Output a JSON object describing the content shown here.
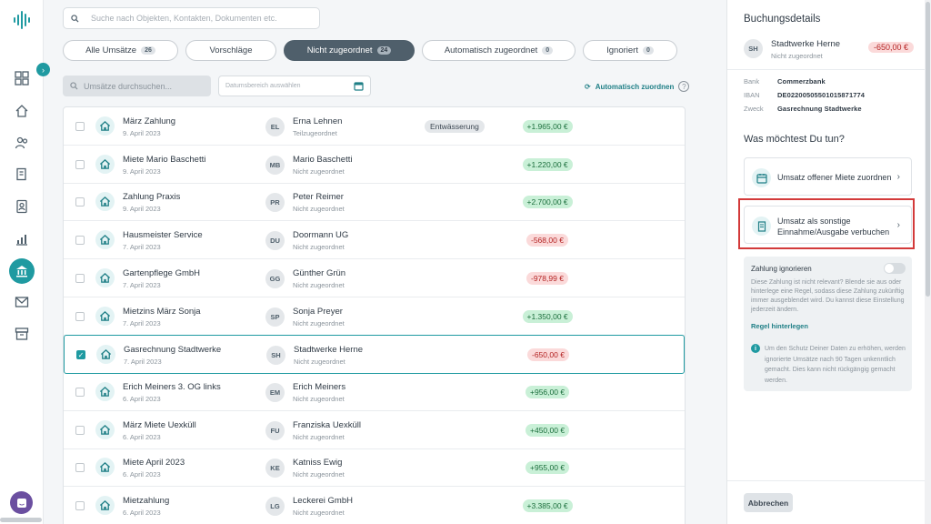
{
  "nav": {
    "items": [
      "dashboard-icon",
      "home-icon",
      "people-icon",
      "documents-icon",
      "contacts-icon",
      "chart-icon",
      "bank-icon",
      "mail-icon",
      "archive-icon"
    ]
  },
  "search": {
    "placeholder": "Suche nach Objekten, Kontakten, Dokumenten etc."
  },
  "tabs": [
    {
      "label": "Alle Umsätze",
      "count": "26"
    },
    {
      "label": "Vorschläge",
      "count": ""
    },
    {
      "label": "Nicht zugeordnet",
      "count": "24"
    },
    {
      "label": "Automatisch zugeordnet",
      "count": "0"
    },
    {
      "label": "Ignoriert",
      "count": "0"
    }
  ],
  "filters": {
    "search_placeholder": "Umsätze durchsuchen...",
    "date_placeholder": "Datumsbereich auswählen",
    "auto_assign": "Automatisch zuordnen",
    "help": "?"
  },
  "transactions": [
    {
      "title": "März Zahlung",
      "date": "9. April 2023",
      "initials": "EL",
      "contact": "Erna Lehnen",
      "status": "Teilzugeordnet",
      "category": "Entwässerung",
      "amount": "+1.965,00 €",
      "positive": true,
      "checked": false
    },
    {
      "title": "Miete Mario Baschetti",
      "date": "9. April 2023",
      "initials": "MB",
      "contact": "Mario Baschetti",
      "status": "Nicht zugeordnet",
      "category": "",
      "amount": "+1.220,00 €",
      "positive": true,
      "checked": false
    },
    {
      "title": "Zahlung Praxis",
      "date": "9. April 2023",
      "initials": "PR",
      "contact": "Peter Reimer",
      "status": "Nicht zugeordnet",
      "category": "",
      "amount": "+2.700,00 €",
      "positive": true,
      "checked": false
    },
    {
      "title": "Hausmeister Service",
      "date": "7. April 2023",
      "initials": "DU",
      "contact": "Doormann UG",
      "status": "Nicht zugeordnet",
      "category": "",
      "amount": "-568,00 €",
      "positive": false,
      "checked": false
    },
    {
      "title": "Gartenpflege GmbH",
      "date": "7. April 2023",
      "initials": "GG",
      "contact": "Günther Grün",
      "status": "Nicht zugeordnet",
      "category": "",
      "amount": "-978,99 €",
      "positive": false,
      "checked": false
    },
    {
      "title": "Mietzins März Sonja",
      "date": "7. April 2023",
      "initials": "SP",
      "contact": "Sonja Preyer",
      "status": "Nicht zugeordnet",
      "category": "",
      "amount": "+1.350,00 €",
      "positive": true,
      "checked": false
    },
    {
      "title": "Gasrechnung Stadtwerke",
      "date": "7. April 2023",
      "initials": "SH",
      "contact": "Stadtwerke Herne",
      "status": "Nicht zugeordnet",
      "category": "",
      "amount": "-650,00 €",
      "positive": false,
      "checked": true
    },
    {
      "title": "Erich Meiners 3. OG links",
      "date": "6. April 2023",
      "initials": "EM",
      "contact": "Erich Meiners",
      "status": "Nicht zugeordnet",
      "category": "",
      "amount": "+956,00 €",
      "positive": true,
      "checked": false
    },
    {
      "title": "März Miete Uexküll",
      "date": "6. April 2023",
      "initials": "FU",
      "contact": "Franziska Uexküll",
      "status": "Nicht zugeordnet",
      "category": "",
      "amount": "+450,00 €",
      "positive": true,
      "checked": false
    },
    {
      "title": "Miete April 2023",
      "date": "6. April 2023",
      "initials": "KE",
      "contact": "Katniss Ewig",
      "status": "Nicht zugeordnet",
      "category": "",
      "amount": "+955,00 €",
      "positive": true,
      "checked": false
    },
    {
      "title": "Mietzahlung",
      "date": "6. April 2023",
      "initials": "LG",
      "contact": "Leckerei GmbH",
      "status": "Nicht zugeordnet",
      "category": "",
      "amount": "+3.385,00 €",
      "positive": true,
      "checked": false
    }
  ],
  "details": {
    "title": "Buchungsdetails",
    "initials": "SH",
    "name": "Stadtwerke Herne",
    "status": "Nicht zugeordnet",
    "amount": "-650,00 €",
    "bank_label": "Bank",
    "bank": "Commerzbank",
    "iban_label": "IBAN",
    "iban": "DE02200505501015871774",
    "purpose_label": "Zweck",
    "purpose": "Gasrechnung Stadtwerke",
    "question": "Was möchtest Du tun?",
    "action1": "Umsatz offener Miete zuordnen",
    "action2": "Umsatz als sonstige Einnahme/Ausgabe verbuchen",
    "ignore_label": "Zahlung ignorieren",
    "ignore_text": "Diese Zahlung ist nicht relevant? Blende sie aus oder hinterlege eine Regel, sodass diese Zahlung zukünftig immer ausgeblendet wird. Du kannst diese Einstellung jederzeit ändern.",
    "rule_link": "Regel hinterlegen",
    "info_text": "Um den Schutz Deiner Daten zu erhöhen, werden ignorierte Umsätze nach 90 Tagen unkenntlich gemacht. Dies kann nicht rückgängig gemacht werden.",
    "cancel": "Abbrechen"
  },
  "colors": {
    "accent": "#1f9aa1",
    "positive_bg": "#c9f0d7",
    "negative_bg": "#fbdada",
    "highlight": "#d33a3a"
  }
}
